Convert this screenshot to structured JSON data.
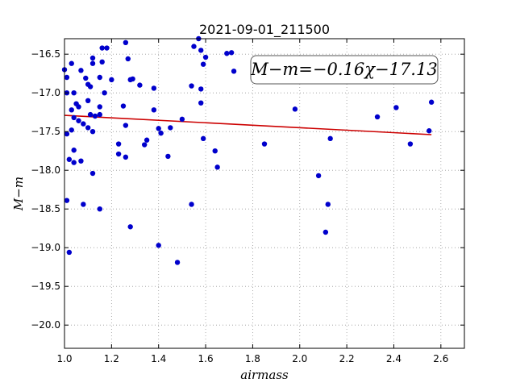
{
  "chart_data": {
    "type": "scatter",
    "title": "2021-09-01_211500",
    "xlabel": "airmass",
    "ylabel": "M−m",
    "xlim": [
      1.0,
      2.7
    ],
    "ylim": [
      -20.3,
      -16.3
    ],
    "y_inverted": true,
    "grid": true,
    "x_ticks": [
      1.0,
      1.2,
      1.4,
      1.6,
      1.8,
      2.0,
      2.2,
      2.4,
      2.6
    ],
    "x_tick_labels": [
      "1.0",
      "1.2",
      "1.4",
      "1.6",
      "1.8",
      "2.0",
      "2.2",
      "2.4",
      "2.6"
    ],
    "y_ticks": [
      -16.5,
      -17.0,
      -17.5,
      -18.0,
      -18.5,
      -19.0,
      -19.5,
      -20.0
    ],
    "y_tick_labels": [
      "−16.5",
      "−17.0",
      "−17.5",
      "−18.0",
      "−18.5",
      "−19.0",
      "−19.5",
      "−20.0"
    ],
    "annotation": "M−m=−0.16χ−17.13",
    "point_color": "#0000cc",
    "fit_color": "#cc0000",
    "fit": {
      "slope": -0.16,
      "intercept": -17.13,
      "x_range": [
        1.0,
        2.56
      ]
    },
    "points": [
      [
        1.0,
        -16.7
      ],
      [
        1.01,
        -16.8
      ],
      [
        1.03,
        -16.62
      ],
      [
        1.07,
        -16.71
      ],
      [
        1.09,
        -16.81
      ],
      [
        1.04,
        -17.0
      ],
      [
        1.01,
        -17.0
      ],
      [
        1.12,
        -16.55
      ],
      [
        1.12,
        -16.62
      ],
      [
        1.15,
        -16.8
      ],
      [
        1.16,
        -16.6
      ],
      [
        1.16,
        -16.42
      ],
      [
        1.18,
        -16.42
      ],
      [
        1.2,
        -16.83
      ],
      [
        1.26,
        -16.35
      ],
      [
        1.27,
        -16.56
      ],
      [
        1.28,
        -16.83
      ],
      [
        1.29,
        -16.82
      ],
      [
        1.32,
        -16.9
      ],
      [
        1.38,
        -16.94
      ],
      [
        1.1,
        -16.89
      ],
      [
        1.11,
        -16.92
      ],
      [
        1.17,
        -17.0
      ],
      [
        1.05,
        -17.14
      ],
      [
        1.06,
        -17.18
      ],
      [
        1.03,
        -17.22
      ],
      [
        1.1,
        -17.1
      ],
      [
        1.11,
        -17.28
      ],
      [
        1.13,
        -17.3
      ],
      [
        1.15,
        -17.18
      ],
      [
        1.15,
        -17.28
      ],
      [
        1.04,
        -17.32
      ],
      [
        1.08,
        -17.4
      ],
      [
        1.1,
        -17.45
      ],
      [
        1.12,
        -17.5
      ],
      [
        1.03,
        -17.48
      ],
      [
        1.01,
        -17.53
      ],
      [
        1.06,
        -17.36
      ],
      [
        1.25,
        -17.17
      ],
      [
        1.26,
        -17.42
      ],
      [
        1.38,
        -17.22
      ],
      [
        1.4,
        -17.46
      ],
      [
        1.41,
        -17.52
      ],
      [
        1.35,
        -17.61
      ],
      [
        1.34,
        -17.67
      ],
      [
        1.23,
        -17.66
      ],
      [
        1.23,
        -17.79
      ],
      [
        1.26,
        -17.83
      ],
      [
        1.04,
        -17.74
      ],
      [
        1.02,
        -17.86
      ],
      [
        1.04,
        -17.9
      ],
      [
        1.07,
        -17.88
      ],
      [
        1.12,
        -18.04
      ],
      [
        1.01,
        -18.39
      ],
      [
        1.08,
        -18.44
      ],
      [
        1.15,
        -18.5
      ],
      [
        1.28,
        -18.73
      ],
      [
        1.02,
        -19.06
      ],
      [
        1.4,
        -18.97
      ],
      [
        1.48,
        -19.19
      ],
      [
        1.44,
        -17.82
      ],
      [
        1.45,
        -17.45
      ],
      [
        1.5,
        -17.34
      ],
      [
        1.54,
        -16.91
      ],
      [
        1.55,
        -16.4
      ],
      [
        1.57,
        -16.3
      ],
      [
        1.58,
        -16.45
      ],
      [
        1.6,
        -16.54
      ],
      [
        1.58,
        -16.95
      ],
      [
        1.58,
        -17.13
      ],
      [
        1.59,
        -17.59
      ],
      [
        1.64,
        -17.75
      ],
      [
        1.65,
        -17.96
      ],
      [
        1.69,
        -16.49
      ],
      [
        1.71,
        -16.48
      ],
      [
        1.72,
        -16.72
      ],
      [
        1.54,
        -18.44
      ],
      [
        1.85,
        -17.66
      ],
      [
        1.98,
        -17.21
      ],
      [
        2.08,
        -18.07
      ],
      [
        2.11,
        -18.8
      ],
      [
        2.12,
        -18.44
      ],
      [
        2.13,
        -17.59
      ],
      [
        2.33,
        -17.31
      ],
      [
        2.41,
        -17.19
      ],
      [
        2.47,
        -17.66
      ],
      [
        2.55,
        -17.49
      ],
      [
        2.56,
        -17.12
      ],
      [
        1.59,
        -16.63
      ]
    ]
  }
}
